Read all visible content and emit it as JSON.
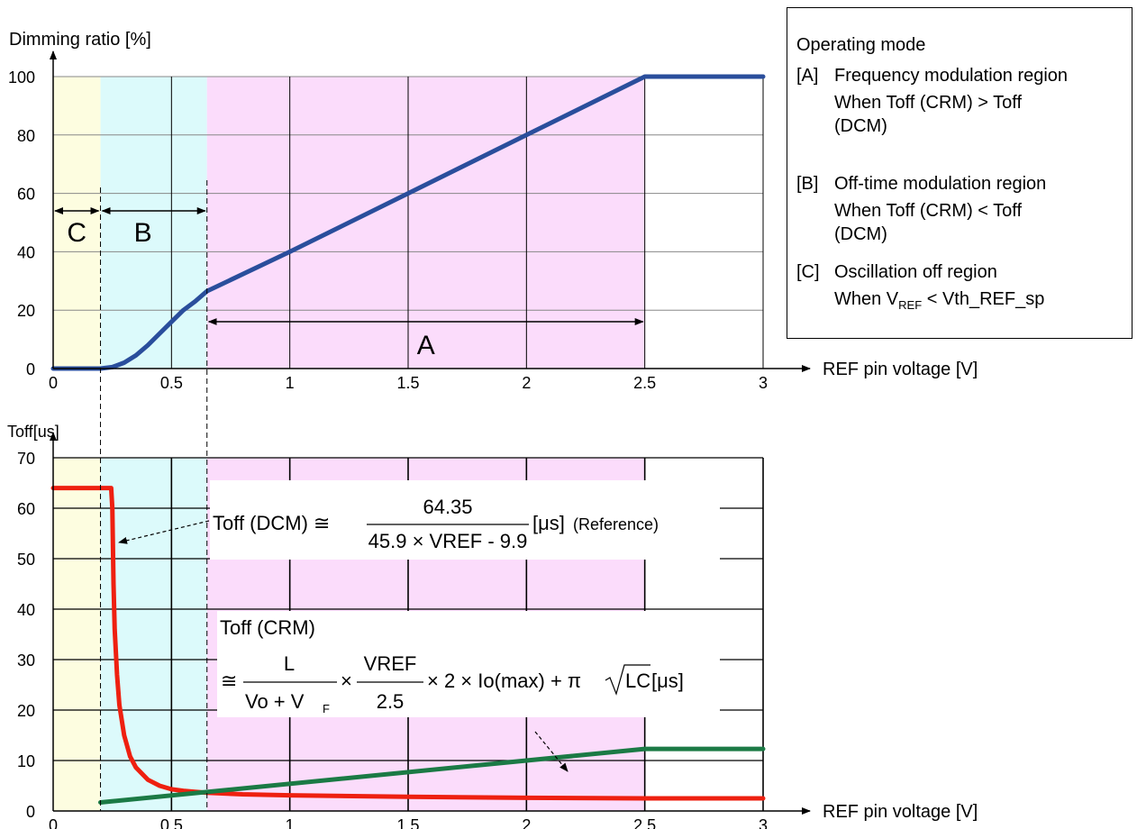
{
  "legend": {
    "title": "Operating mode",
    "items": [
      {
        "tag": "[A]",
        "name": "Frequency modulation region",
        "detail": "When Toff (CRM) > Toff (DCM)"
      },
      {
        "tag": "[B]",
        "name": "Off-time modulation region",
        "detail": "When Toff (CRM) < Toff (DCM)"
      },
      {
        "tag": "[C]",
        "name": "Oscillation off region",
        "detail_prefix": "When V",
        "detail_sub": "REF",
        "detail_suffix": " < Vth_REF_sp"
      }
    ]
  },
  "regions": {
    "C": {
      "label": "C",
      "x0": 0,
      "x1": 0.2,
      "color": "#fdfde0"
    },
    "B": {
      "label": "B",
      "x0": 0.2,
      "x1": 0.65,
      "color": "#dcfafb"
    },
    "A": {
      "label": "A",
      "x0": 0.65,
      "x1": 2.5,
      "color": "#fbdcfb"
    }
  },
  "annotations": {
    "dcm_lhs": "Toff (DCM) ≅",
    "dcm_num": "64.35",
    "dcm_den": "45.9 × VREF - 9.9",
    "dcm_unit": "[μs]",
    "dcm_note": "(Reference)",
    "crm_title": "Toff (CRM)",
    "crm_approx": "≅",
    "crm_f1_num": "L",
    "crm_f1_den": "Vo + V",
    "crm_f1_den_sub": "F",
    "crm_times1": "×",
    "crm_f2_num": "VREF",
    "crm_f2_den": "2.5",
    "crm_tail": "× 2 × Io(max) + π",
    "crm_sqrt": "LC",
    "crm_unit": "[μs]"
  },
  "chart_data": [
    {
      "type": "line",
      "ylabel": "Dimming ratio [%]",
      "xlabel": "REF pin voltage [V]",
      "xlim": [
        0,
        3
      ],
      "ylim": [
        0,
        100
      ],
      "xticks": [
        "0",
        "0.5",
        "1",
        "1.5",
        "2",
        "2.5",
        "3"
      ],
      "yticks": [
        "0",
        "20",
        "40",
        "60",
        "80",
        "100"
      ],
      "grid": true,
      "series": [
        {
          "color": "#2a4e9c",
          "x": [
            0,
            0.2,
            0.25,
            0.3,
            0.35,
            0.4,
            0.45,
            0.5,
            0.55,
            0.6,
            0.65,
            1.0,
            1.5,
            2.0,
            2.5,
            3.0
          ],
          "y": [
            0,
            0,
            0.5,
            2,
            4.5,
            8,
            12,
            16,
            20,
            23,
            26.5,
            40,
            60,
            80,
            100,
            100
          ]
        }
      ]
    },
    {
      "type": "line",
      "ylabel": "Toff[us]",
      "xlabel": "REF pin voltage [V]",
      "xlim": [
        0,
        3
      ],
      "ylim": [
        0,
        70
      ],
      "xticks": [
        "0",
        "0.5",
        "1",
        "1.5",
        "2",
        "2.5",
        "3"
      ],
      "yticks": [
        "0",
        "10",
        "20",
        "30",
        "40",
        "50",
        "60",
        "70"
      ],
      "grid": true,
      "series": [
        {
          "color": "#ee2010",
          "x": [
            0,
            0.22,
            0.245,
            0.25,
            0.255,
            0.26,
            0.27,
            0.28,
            0.3,
            0.325,
            0.35,
            0.4,
            0.45,
            0.5,
            0.55,
            0.6,
            0.65,
            0.8,
            1.0,
            1.5,
            2.0,
            2.5,
            3.0
          ],
          "y": [
            64,
            64,
            64,
            60,
            45,
            36,
            27,
            21,
            15,
            10.8,
            8.6,
            6.2,
            5.0,
            4.3,
            4.0,
            3.8,
            3.6,
            3.3,
            3.1,
            2.8,
            2.6,
            2.5,
            2.5
          ]
        },
        {
          "color": "#1b7a45",
          "x": [
            0.2,
            2.5,
            3.0
          ],
          "y": [
            1.7,
            12.3,
            12.3
          ]
        }
      ]
    }
  ]
}
